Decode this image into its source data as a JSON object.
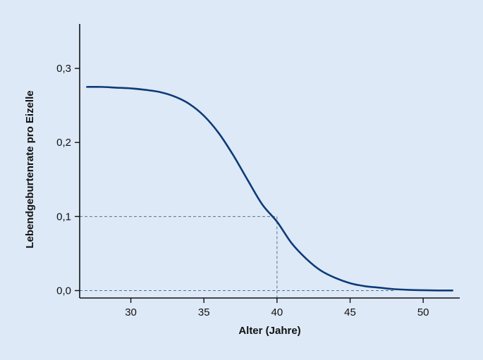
{
  "chart_data": {
    "type": "line",
    "xlabel": "Alter (Jahre)",
    "ylabel": "Lebendgeburtenrate pro Eizelle",
    "xlim": [
      26.5,
      52.5
    ],
    "ylim": [
      -0.01,
      0.36
    ],
    "x_ticks": [
      30,
      35,
      40,
      45,
      50
    ],
    "x_tick_labels": [
      "30",
      "35",
      "40",
      "45",
      "50"
    ],
    "y_ticks": [
      0.0,
      0.1,
      0.2,
      0.3
    ],
    "y_tick_labels": [
      "0,0",
      "0,1",
      "0,2",
      "0,3"
    ],
    "grid": false,
    "colors": {
      "line": "#0d3b78",
      "reference": "#5a6f86",
      "axis": "#111111",
      "background": "#dde9f7"
    },
    "series": [
      {
        "x": [
          27,
          28,
          29,
          30,
          31,
          32,
          33,
          34,
          35,
          36,
          37,
          38,
          39,
          40,
          41,
          42,
          43,
          44,
          45,
          46,
          47,
          48,
          49,
          50,
          51,
          52
        ],
        "y": [
          0.275,
          0.275,
          0.274,
          0.273,
          0.271,
          0.268,
          0.262,
          0.252,
          0.236,
          0.213,
          0.183,
          0.149,
          0.116,
          0.093,
          0.064,
          0.043,
          0.027,
          0.017,
          0.01,
          0.006,
          0.004,
          0.002,
          0.001,
          0.0005,
          0.0002,
          0.0002
        ]
      }
    ],
    "reference_lines": [
      {
        "x": 40,
        "y": 0.1
      },
      {
        "x": 48,
        "y": 0.0
      }
    ]
  }
}
